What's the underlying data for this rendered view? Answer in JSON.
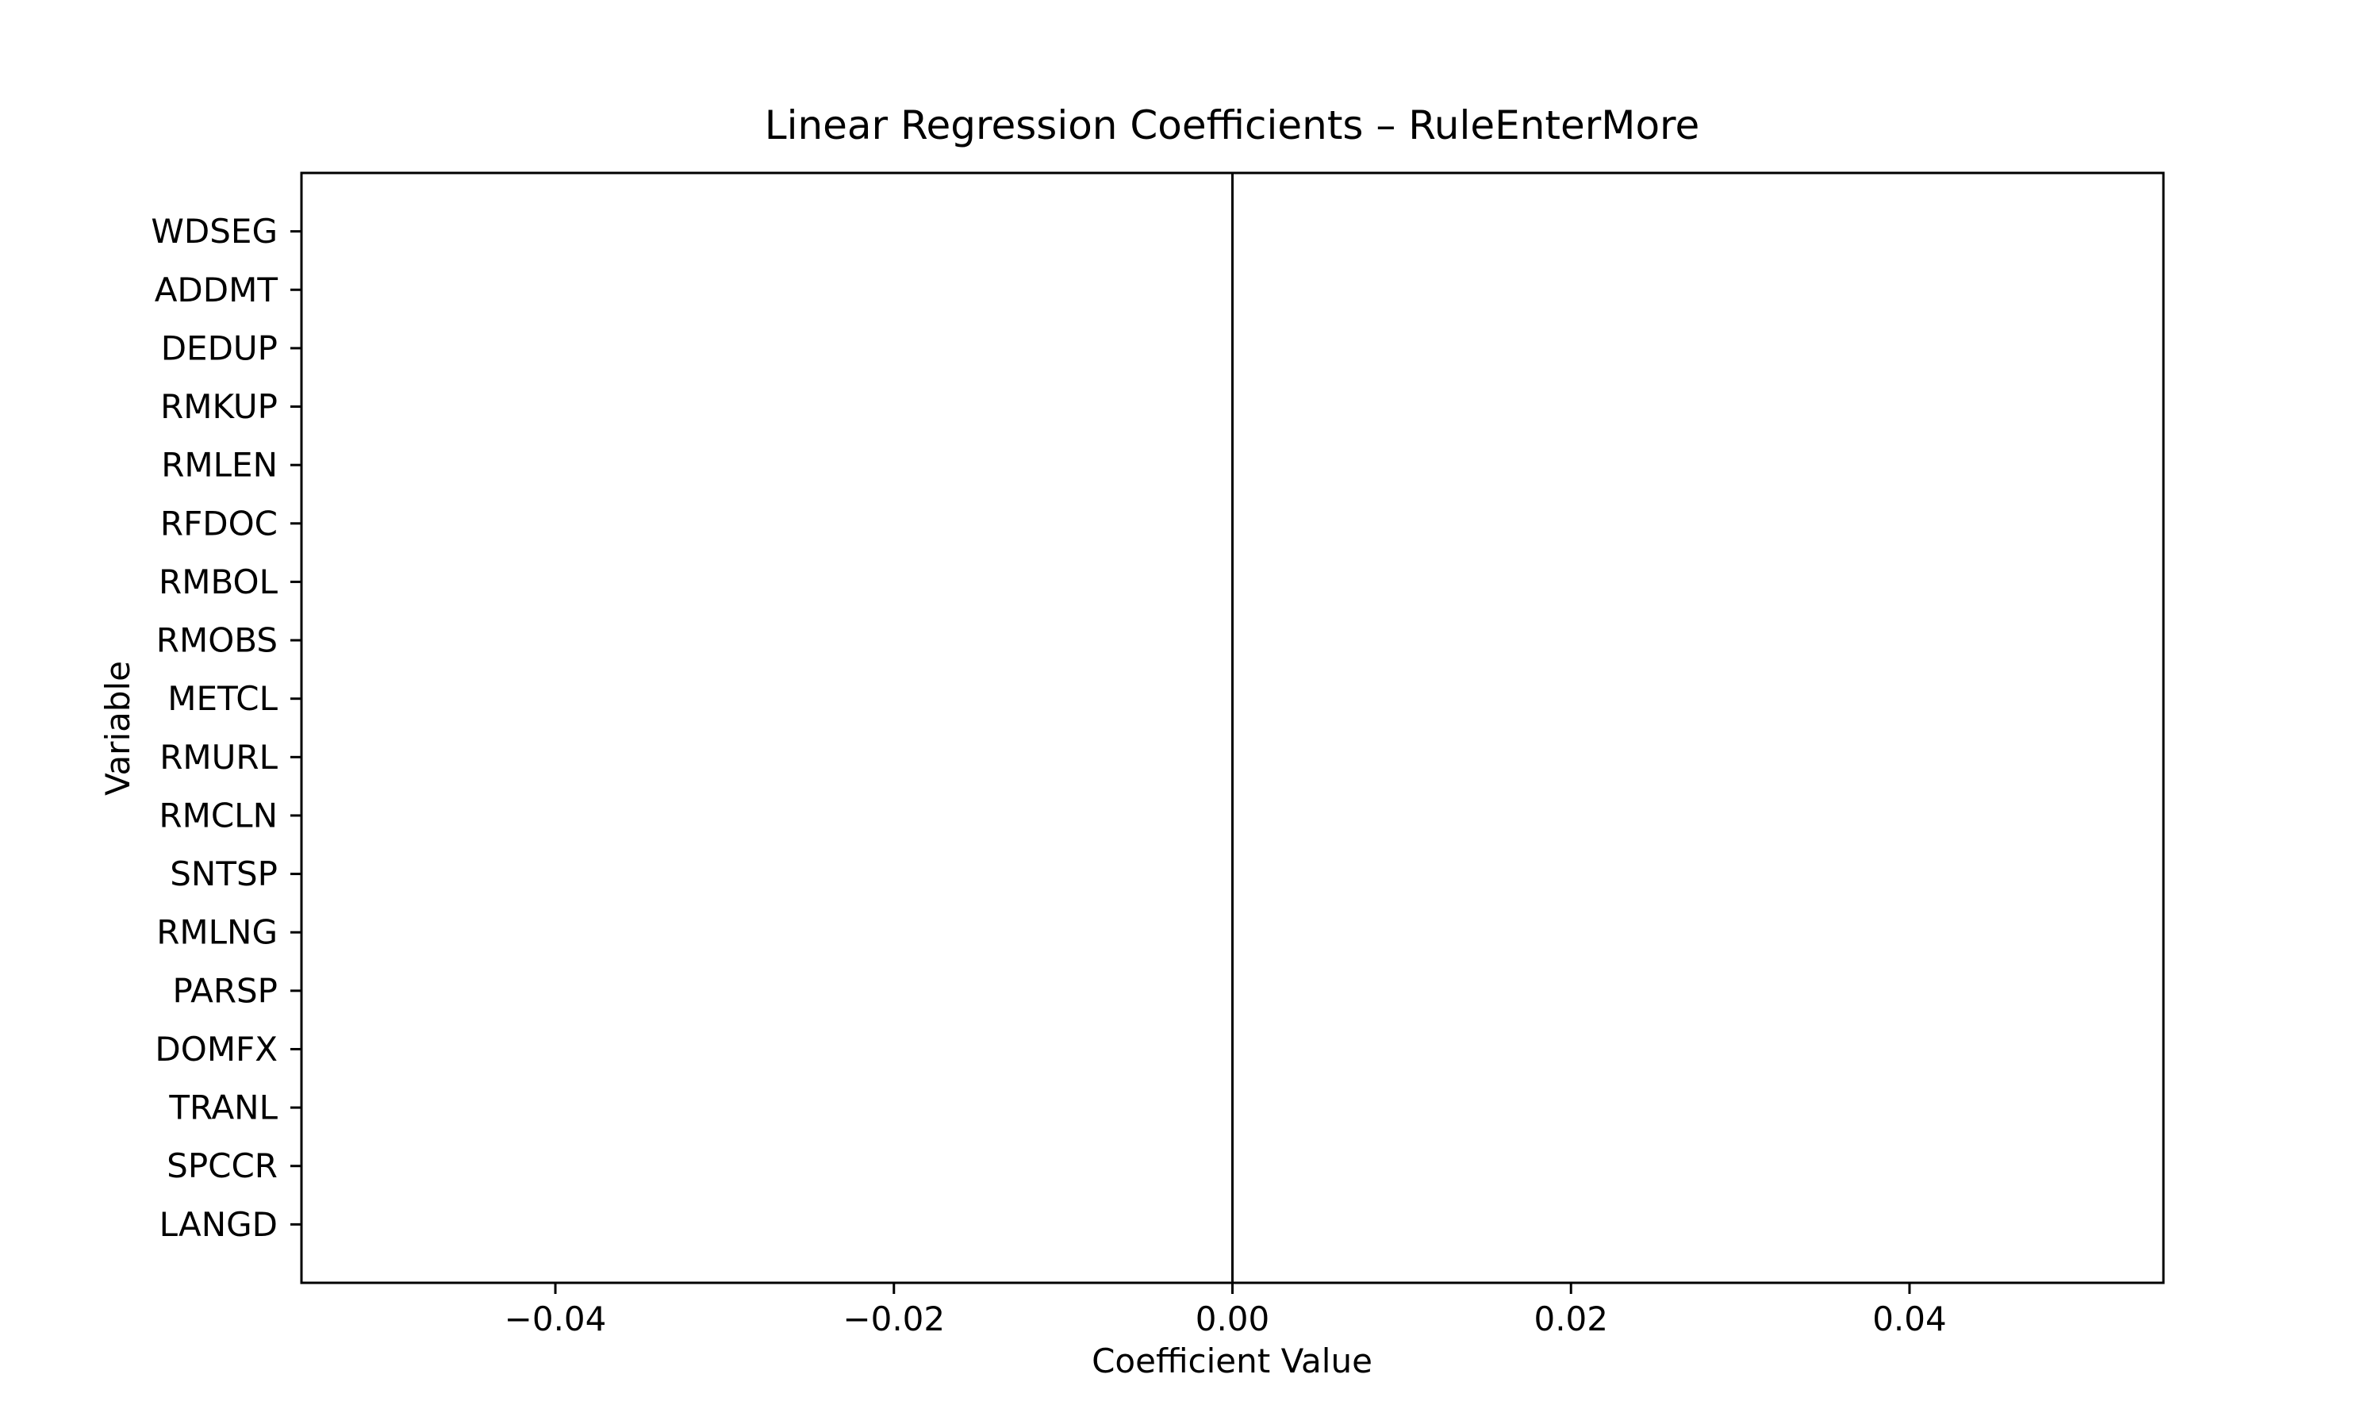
{
  "chart_data": {
    "type": "bar",
    "orientation": "horizontal",
    "title": "Linear Regression Coefficients – RuleEnterMore",
    "xlabel": "Coefficient Value",
    "ylabel": "Variable",
    "categories": [
      "WDSEG",
      "ADDMT",
      "DEDUP",
      "RMKUP",
      "RMLEN",
      "RFDOC",
      "RMBOL",
      "RMOBS",
      "METCL",
      "RMURL",
      "RMCLN",
      "SNTSP",
      "RMLNG",
      "PARSP",
      "DOMFX",
      "TRANL",
      "SPCCR",
      "LANGD"
    ],
    "values": [
      0,
      0,
      0,
      0,
      0,
      0,
      0,
      0,
      0,
      0,
      0,
      0,
      0,
      0,
      0,
      0,
      0,
      0
    ],
    "xlim": [
      -0.055,
      0.055
    ],
    "xticks": [
      -0.04,
      -0.02,
      0.0,
      0.02,
      0.04
    ],
    "xtick_labels": [
      "−0.04",
      "−0.02",
      "0.00",
      "0.02",
      "0.04"
    ],
    "reference_line_x": 0,
    "grid": false,
    "legend": "none"
  }
}
